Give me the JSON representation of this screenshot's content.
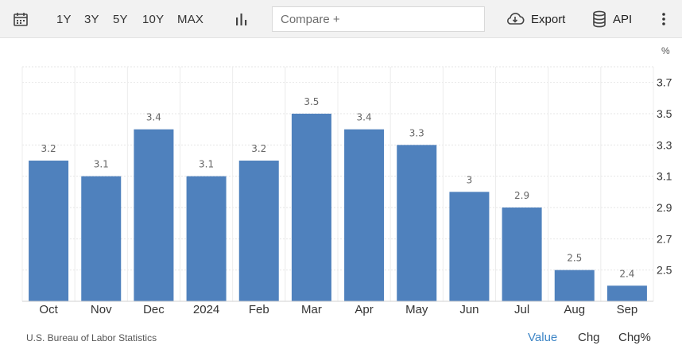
{
  "toolbar": {
    "calendar_icon": "calendar-icon",
    "ranges": [
      "1Y",
      "3Y",
      "5Y",
      "10Y",
      "MAX"
    ],
    "chart_type_icon": "bar-chart-icon",
    "compare_placeholder": "Compare +",
    "export_label": "Export",
    "export_icon": "cloud-download-icon",
    "api_label": "API",
    "api_icon": "database-icon",
    "more_icon": "more-vertical-icon"
  },
  "footer": {
    "source": "U.S. Bureau of Labor Statistics",
    "modes": [
      "Value",
      "Chg",
      "Chg%"
    ],
    "active_mode": "Value"
  },
  "colors": {
    "bar": "#4f81bd",
    "accent": "#3d85c6"
  },
  "chart_data": {
    "type": "bar",
    "categories": [
      "Oct",
      "Nov",
      "Dec",
      "2024",
      "Feb",
      "Mar",
      "Apr",
      "May",
      "Jun",
      "Jul",
      "Aug",
      "Sep"
    ],
    "values": [
      3.2,
      3.1,
      3.4,
      3.1,
      3.2,
      3.5,
      3.4,
      3.3,
      3,
      2.9,
      2.5,
      2.4
    ],
    "value_labels": [
      "3.2",
      "3.1",
      "3.4",
      "3.1",
      "3.2",
      "3.5",
      "3.4",
      "3.3",
      "3",
      "2.9",
      "2.5",
      "2.4"
    ],
    "y_unit": "%",
    "y_ticks": [
      "3.7",
      "3.5",
      "3.3",
      "3.1",
      "2.9",
      "2.7",
      "2.5"
    ],
    "ylim": [
      2.3,
      3.8
    ],
    "grid": true,
    "legend": false,
    "y_axis_side": "right"
  }
}
